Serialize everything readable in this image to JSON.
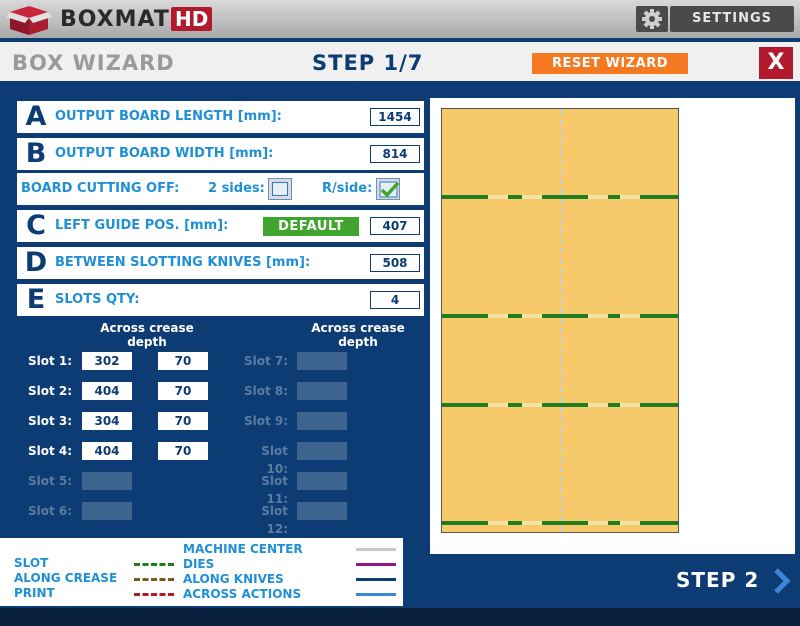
{
  "app": {
    "brand": "BOXMAT",
    "brand_suffix": "HD",
    "settings_label": "SETTINGS"
  },
  "wizard": {
    "title": "BOX WIZARD",
    "step": "STEP 1/7",
    "reset_label": "RESET WIZARD",
    "close_label": "X",
    "next_label": "STEP 2"
  },
  "params": {
    "a": {
      "letter": "A",
      "label": "OUTPUT BOARD LENGTH [mm]:",
      "value": "1454"
    },
    "b": {
      "letter": "B",
      "label": "OUTPUT BOARD WIDTH [mm]:",
      "value": "814"
    },
    "cut": {
      "label": "BOARD CUTTING OFF:",
      "opt1": "2 sides:",
      "opt1_checked": false,
      "opt2": "R/side:",
      "opt2_checked": true
    },
    "c": {
      "letter": "C",
      "label": "LEFT GUIDE POS. [mm]:",
      "default_label": "DEFAULT",
      "value": "407"
    },
    "d": {
      "letter": "D",
      "label": "BETWEEN SLOTTING KNIVES [mm]:",
      "value": "508"
    },
    "e": {
      "letter": "E",
      "label": "SLOTS QTY:",
      "value": "4"
    }
  },
  "slots": {
    "col_header_1": "Across crease",
    "col_header_1b": "depth",
    "col_header_2": "Across crease",
    "col_header_2b": "depth",
    "items": [
      {
        "label": "Slot 1:",
        "across": "302",
        "depth": "70"
      },
      {
        "label": "Slot 2:",
        "across": "404",
        "depth": "70"
      },
      {
        "label": "Slot 3:",
        "across": "304",
        "depth": "70"
      },
      {
        "label": "Slot 4:",
        "across": "404",
        "depth": "70"
      },
      {
        "label": "Slot 5:",
        "across": "",
        "depth": ""
      },
      {
        "label": "Slot 6:",
        "across": "",
        "depth": ""
      },
      {
        "label": "Slot 7:",
        "across": ""
      },
      {
        "label": "Slot 8:",
        "across": ""
      },
      {
        "label": "Slot 9:",
        "across": ""
      },
      {
        "label": "Slot 10:",
        "across": ""
      },
      {
        "label": "Slot 11:",
        "across": ""
      },
      {
        "label": "Slot 12:",
        "across": ""
      }
    ]
  },
  "legend": {
    "slot": "SLOT",
    "along_crease": "ALONG CREASE",
    "print": "PRINT",
    "machine_center": "MACHINE CENTER",
    "dies": "DIES",
    "along_knives": "ALONG KNIVES",
    "across_actions": "ACROSS ACTIONS",
    "colors": {
      "slot": "#1f7d1f",
      "along_crease": "#7a5a1a",
      "print": "#b01a2c",
      "machine_center": "#c8c8c8",
      "dies": "#8a1a8a",
      "along_knives": "#0d3b73",
      "across_actions": "#3a86d8"
    }
  },
  "colors": {
    "navy": "#0d3b73",
    "accent_blue": "#1f8fd6",
    "orange": "#f47920",
    "red": "#b01a2c",
    "green": "#3fa52e",
    "board": "#f6c96b"
  }
}
